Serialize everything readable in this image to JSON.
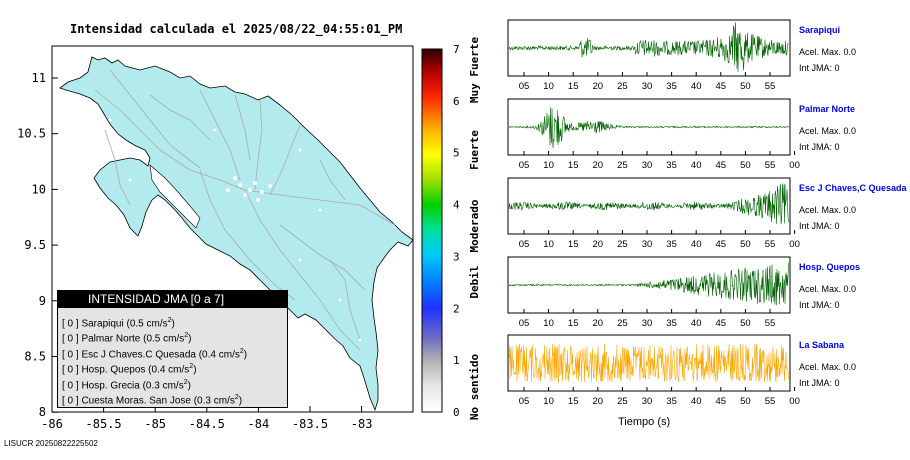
{
  "title": "Intensidad calculada el 2025/08/22_04:55:01_PM",
  "map": {
    "x_ticks": [
      "-86",
      "-85.5",
      "-85",
      "-84.5",
      "-84",
      "-83.5",
      "-83"
    ],
    "y_ticks": [
      "11",
      "10.5",
      "10",
      "9.5",
      "9",
      "8.5",
      "8"
    ],
    "land_color": "#b2eaed",
    "road_color": "#aaaaaa"
  },
  "colorbar": {
    "ticks": [
      "0",
      "1",
      "2",
      "3",
      "4",
      "5",
      "6",
      "7"
    ],
    "labels": [
      "No sentido",
      "Debil",
      "Moderado",
      "Fuerte",
      "Muy Fuerte"
    ]
  },
  "legend": {
    "header": "INTENSIDAD JMA [0 a 7]",
    "rows": [
      {
        "jma": "[ 0 ]",
        "text": "Sarapiqui (0.5 cm/s",
        "sup": "2",
        ")": ")"
      },
      {
        "jma": "[ 0 ]",
        "text": "Palmar Norte (0.5 cm/s",
        "sup": "2"
      },
      {
        "jma": "[ 0 ]",
        "text": "Esc J Chaves.C Quesada (0.4 cm/s",
        "sup": "2"
      },
      {
        "jma": "[ 0 ]",
        "text": "Hosp. Quepos (0.4 cm/s",
        "sup": "2"
      },
      {
        "jma": "[ 0 ]",
        "text": "Hosp. Grecia (0.3 cm/s",
        "sup": "2"
      },
      {
        "jma": "[ 0 ]",
        "text": "Cuesta Moras. San Jose (0.3 cm/s",
        "sup": "2"
      }
    ]
  },
  "stations": [
    {
      "name": "Sarapiqui",
      "acel": "Acel. Max. 0.0",
      "jma": "Int JMA: 0",
      "color": "#006400",
      "xticks": [
        "05",
        "10",
        "15",
        "20",
        "25",
        "30",
        "35",
        "40",
        "45",
        "50",
        "55"
      ]
    },
    {
      "name": "Palmar Norte",
      "acel": "Acel. Max. 0.0",
      "jma": "Int JMA: 0",
      "color": "#006400",
      "xticks": [
        "05",
        "10",
        "15",
        "20",
        "25",
        "30",
        "35",
        "40",
        "45",
        "50",
        "55",
        "00"
      ]
    },
    {
      "name": "Esc J Chaves,C Quesada",
      "acel": "Acel. Max. 0.0",
      "jma": "Int JMA: 0",
      "color": "#006400",
      "xticks": [
        "05",
        "10",
        "15",
        "20",
        "25",
        "30",
        "35",
        "40",
        "45",
        "50",
        "55",
        "00"
      ]
    },
    {
      "name": "Hosp. Quepos",
      "acel": "Acel. Max. 0.0",
      "jma": "Int JMA: 0",
      "color": "#006400",
      "xticks": [
        "05",
        "10",
        "15",
        "20",
        "25",
        "30",
        "35",
        "40",
        "45",
        "50",
        "55"
      ]
    },
    {
      "name": "La Sabana",
      "acel": "Acel. Max. 0.0",
      "jma": "Int JMA: 0",
      "color": "#ffa500",
      "xticks": [
        "05",
        "10",
        "15",
        "20",
        "25",
        "30",
        "35",
        "40",
        "45",
        "50",
        "55",
        "00"
      ]
    }
  ],
  "time_axis_label": "Tiempo (s)",
  "footer": "LISUCR 20250822225502"
}
